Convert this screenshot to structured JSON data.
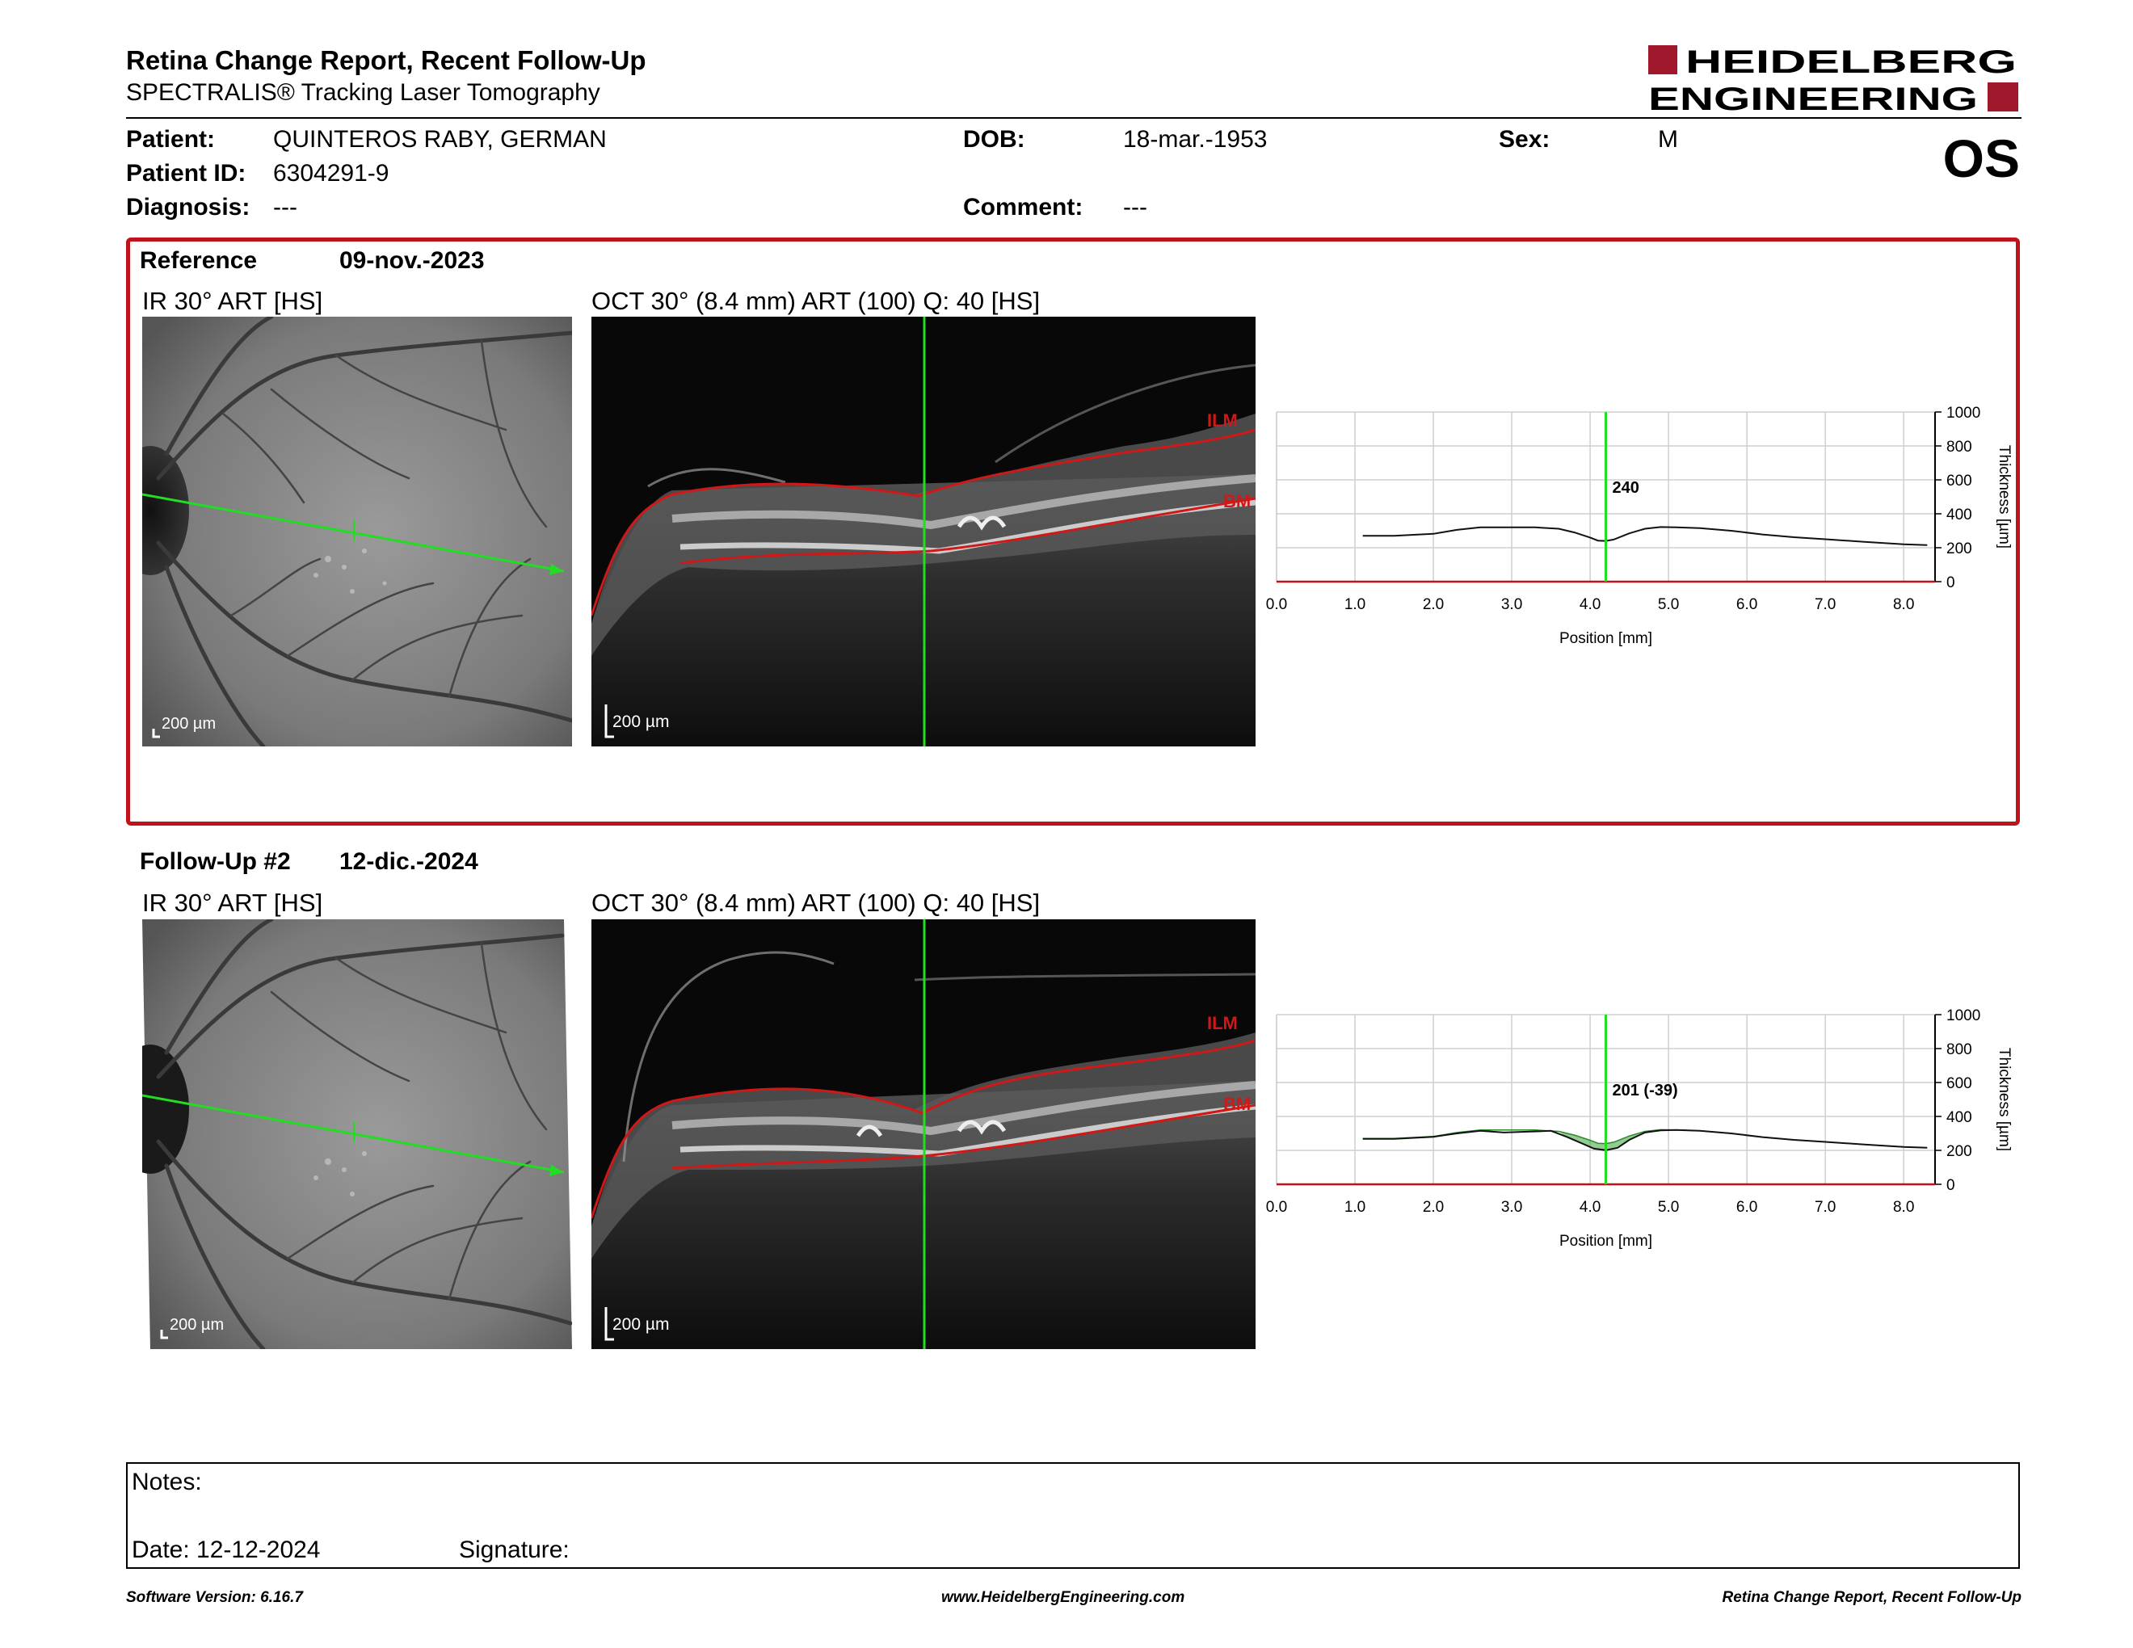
{
  "header": {
    "title": "Retina Change Report, Recent Follow-Up",
    "subtitle": "SPECTRALIS® Tracking Laser Tomography",
    "logo_line1": "HEIDELBERG",
    "logo_line2": "ENGINEERING",
    "eye": "OS"
  },
  "patient": {
    "name_label": "Patient:",
    "name": "QUINTEROS RABY, GERMAN",
    "id_label": "Patient ID:",
    "id": "6304291-9",
    "diagnosis_label": "Diagnosis:",
    "diagnosis": "---",
    "dob_label": "DOB:",
    "dob": "18-mar.-1953",
    "comment_label": "Comment:",
    "comment": "---",
    "sex_label": "Sex:",
    "sex": "M"
  },
  "colors": {
    "reference_frame": "#c0121b",
    "scan_line": "#22dd22",
    "layer_line": "#d01818",
    "logo_red": "#a0182c"
  },
  "reference": {
    "label": "Reference",
    "date": "09-nov.-2023",
    "ir_title": "IR 30° ART [HS]",
    "oct_title": "OCT 30° (8.4 mm) ART (100) Q: 40 [HS]",
    "scale_ir": "200 µm",
    "scale_oct": "200 µm",
    "ilm": "ILM",
    "bm": "BM"
  },
  "followup": {
    "label": "Follow-Up #2",
    "date": "12-dic.-2024",
    "ir_title": "IR 30° ART [HS]",
    "oct_title": "OCT 30° (8.4 mm) ART (100) Q: 40 [HS]",
    "scale_ir": "200 µm",
    "scale_oct": "200 µm",
    "ilm": "ILM",
    "bm": "BM"
  },
  "chart_data": [
    {
      "type": "line",
      "xlabel": "Position [mm]",
      "ylabel": "Thickness [µm]",
      "xlim": [
        0,
        8.4
      ],
      "ylim": [
        0,
        1000
      ],
      "x_ticks": [
        "0.0",
        "1.0",
        "2.0",
        "3.0",
        "4.0",
        "5.0",
        "6.0",
        "7.0",
        "8.0"
      ],
      "y_ticks": [
        "0",
        "200",
        "400",
        "600",
        "800",
        "1000"
      ],
      "grid": true,
      "marker_x": 4.2,
      "marker_label": "240",
      "series": [
        {
          "x": [
            1.1,
            1.5,
            2.0,
            2.3,
            2.6,
            3.0,
            3.3,
            3.6,
            3.8,
            4.0,
            4.1,
            4.2,
            4.3,
            4.5,
            4.7,
            4.9,
            5.1,
            5.4,
            5.8,
            6.2,
            6.6,
            7.0,
            7.5,
            8.0,
            8.3
          ],
          "y": [
            270,
            270,
            282,
            305,
            320,
            320,
            320,
            312,
            290,
            260,
            242,
            240,
            248,
            285,
            312,
            322,
            320,
            315,
            300,
            278,
            262,
            250,
            235,
            220,
            215
          ]
        }
      ]
    },
    {
      "type": "line",
      "xlabel": "Position [mm]",
      "ylabel": "Thickness [µm]",
      "xlim": [
        0,
        8.4
      ],
      "ylim": [
        0,
        1000
      ],
      "x_ticks": [
        "0.0",
        "1.0",
        "2.0",
        "3.0",
        "4.0",
        "5.0",
        "6.0",
        "7.0",
        "8.0"
      ],
      "y_ticks": [
        "0",
        "200",
        "400",
        "600",
        "800",
        "1000"
      ],
      "grid": true,
      "marker_x": 4.2,
      "marker_label": "201 (-39)",
      "series": [
        {
          "x": [
            1.1,
            1.5,
            2.0,
            2.3,
            2.6,
            2.9,
            3.2,
            3.5,
            3.7,
            3.9,
            4.05,
            4.2,
            4.35,
            4.5,
            4.7,
            4.9,
            5.1,
            5.4,
            5.8,
            6.2,
            6.6,
            7.0,
            7.5,
            8.0,
            8.3
          ],
          "y": [
            268,
            268,
            280,
            300,
            315,
            305,
            310,
            315,
            280,
            240,
            210,
            201,
            215,
            262,
            305,
            318,
            320,
            315,
            300,
            278,
            262,
            250,
            235,
            220,
            215
          ]
        }
      ]
    }
  ],
  "notes": {
    "label": "Notes:",
    "date_label": "Date: 12-12-2024",
    "signature_label": "Signature:"
  },
  "footer": {
    "left": "Software Version: 6.16.7",
    "center": "www.HeidelbergEngineering.com",
    "right": "Retina Change Report, Recent Follow-Up"
  }
}
